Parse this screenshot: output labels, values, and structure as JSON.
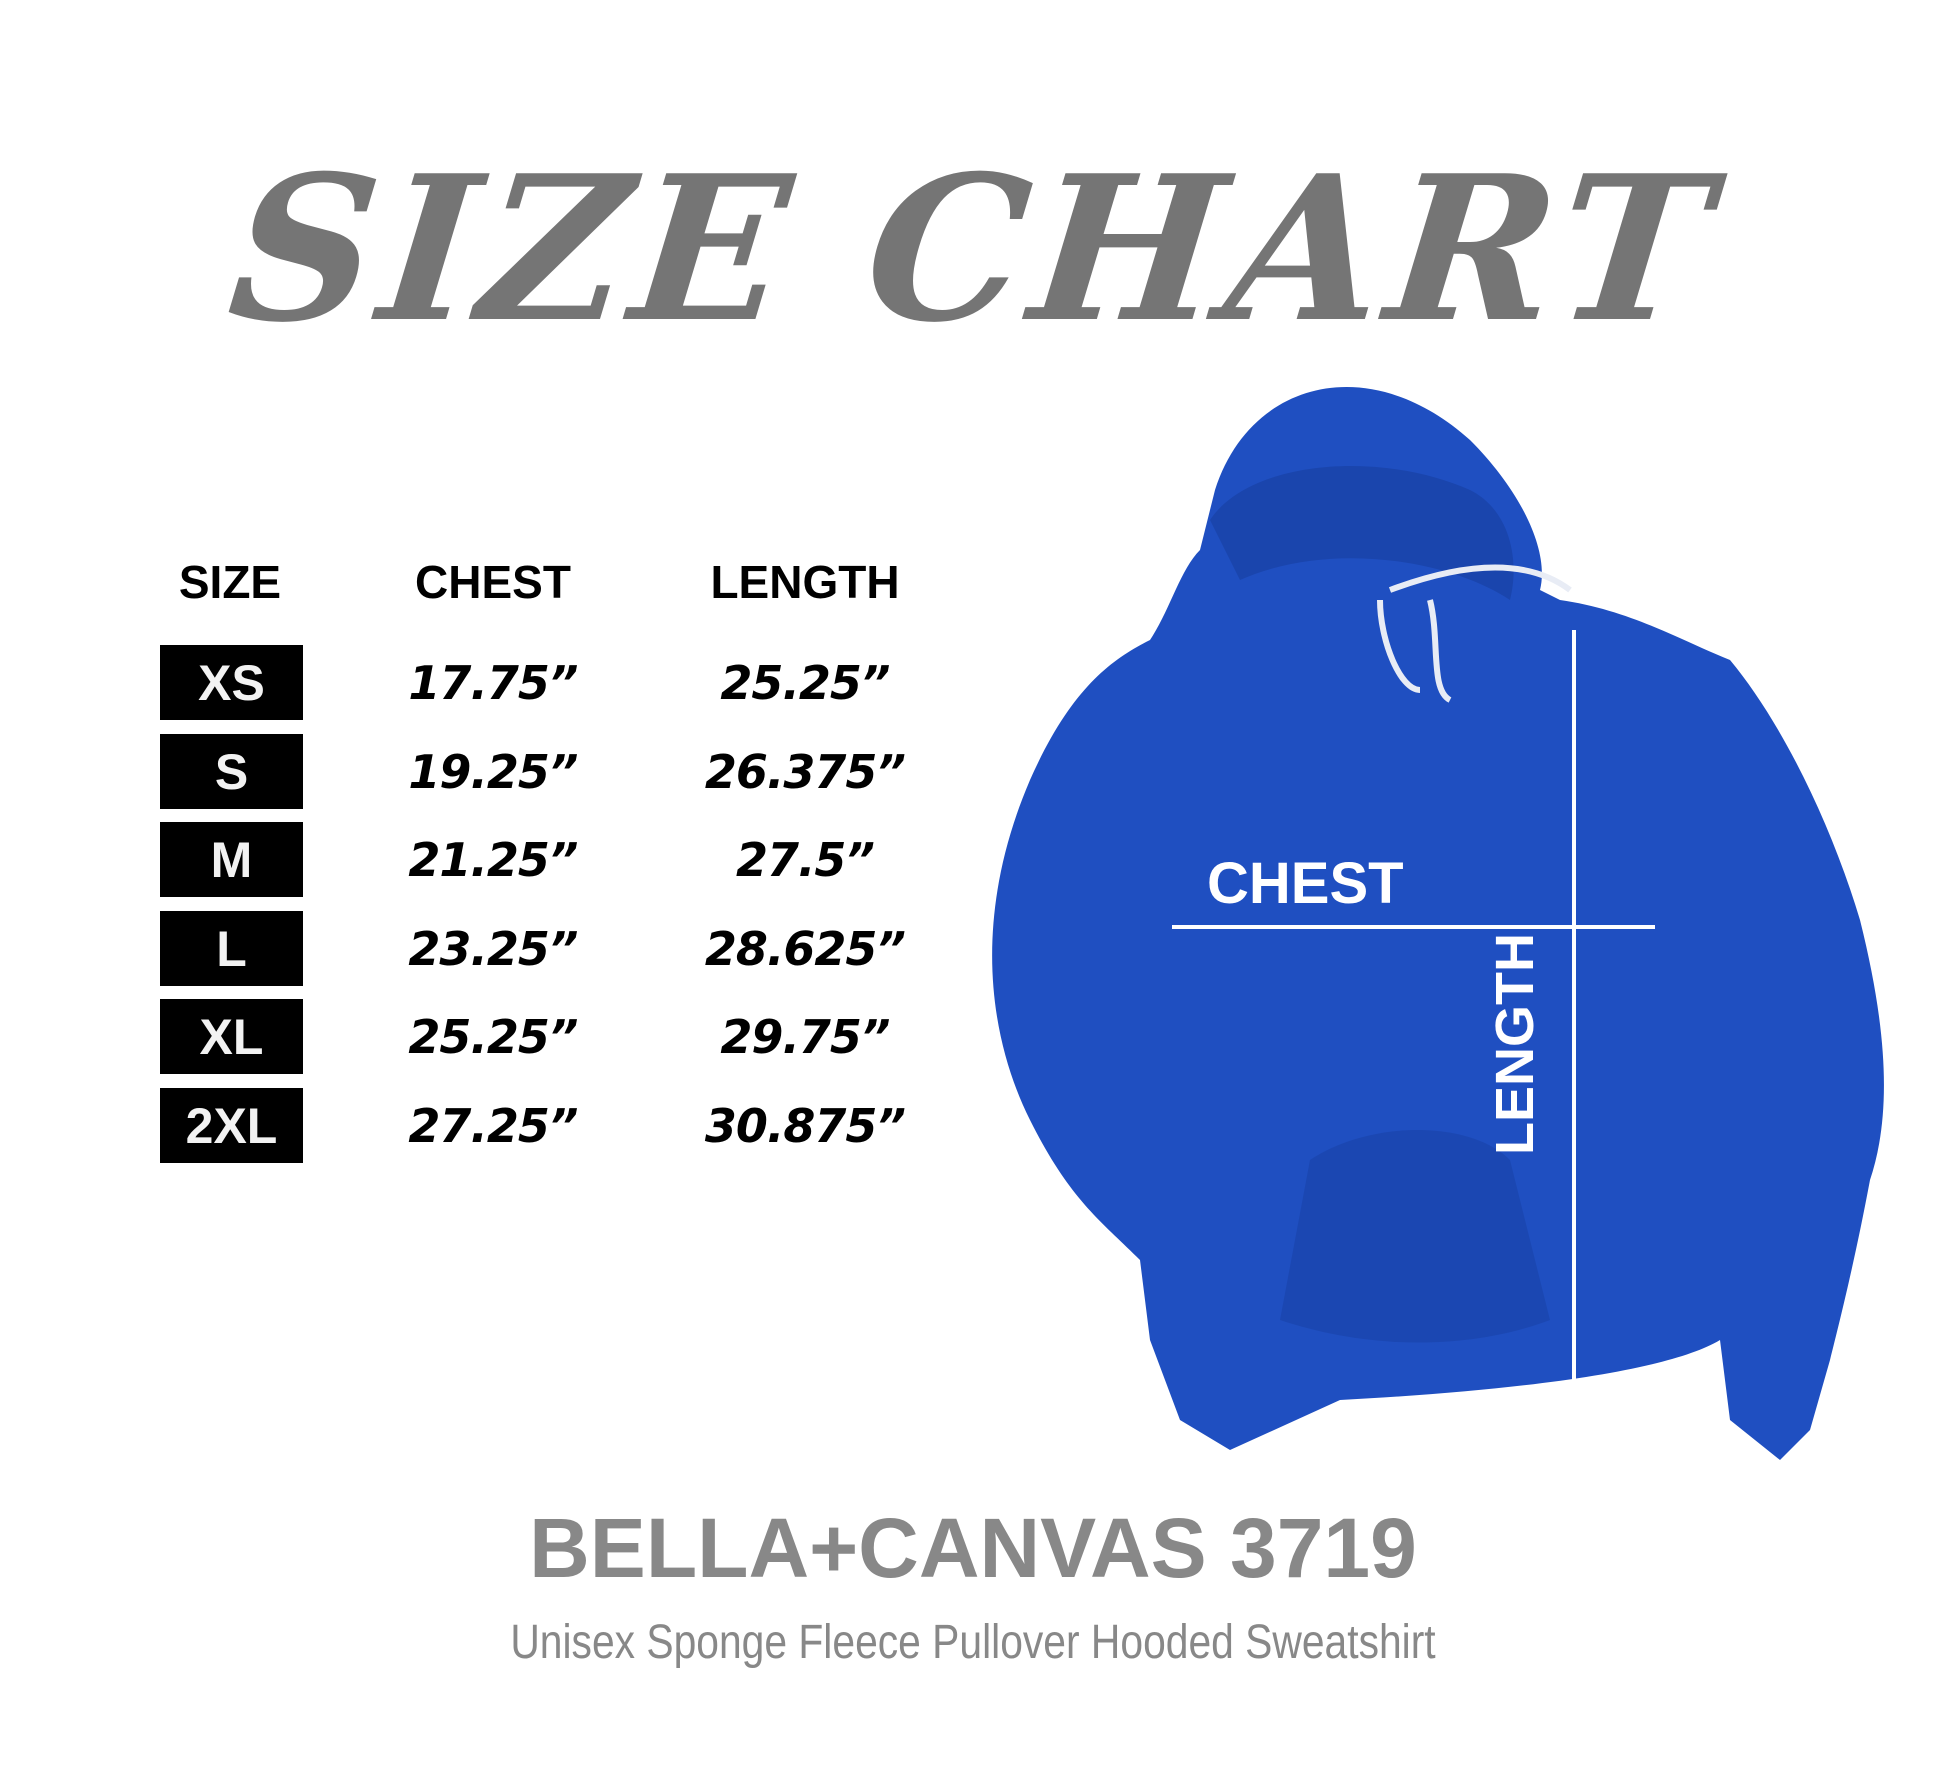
{
  "title": "SIZE CHART",
  "headers": {
    "size": "SIZE",
    "chest": "CHEST",
    "length": "LENGTH"
  },
  "rows": [
    {
      "size": "XS",
      "chest": "17.75”",
      "length": "25.25”"
    },
    {
      "size": "S",
      "chest": "19.25”",
      "length": "26.375”"
    },
    {
      "size": "M",
      "chest": "21.25”",
      "length": "27.5”"
    },
    {
      "size": "L",
      "chest": "23.25”",
      "length": "28.625”"
    },
    {
      "size": "XL",
      "chest": "25.25”",
      "length": "29.75”"
    },
    {
      "size": "2XL",
      "chest": "27.25”",
      "length": "30.875”"
    }
  ],
  "garment": {
    "chest_label": "CHEST",
    "length_label": "LENGTH",
    "color": "#1f4fc1"
  },
  "brand": "BELLA+CANVAS 3719",
  "subtitle": "Unisex Sponge Fleece Pullover Hooded Sweatshirt",
  "colors": {
    "title": "#757575",
    "brand": "#888888",
    "size_box": "#000000"
  }
}
